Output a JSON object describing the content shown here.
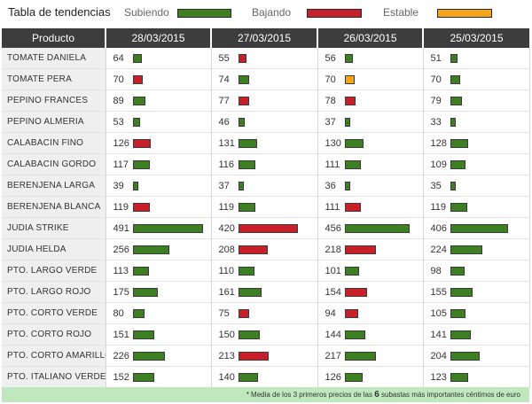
{
  "legend": {
    "title": "Tabla de tendencias",
    "up_label": "Subiendo",
    "down_label": "Bajando",
    "stable_label": "Estable"
  },
  "colors": {
    "up": "#3f7f24",
    "down": "#c8202a",
    "stable": "#f4a51a",
    "header_bg": "#3d3d3d",
    "footer_bg": "#bfe8bf"
  },
  "columns": [
    "Producto",
    "28/03/2015",
    "27/03/2015",
    "26/03/2015",
    "25/03/2015"
  ],
  "rows": [
    {
      "product": "TOMATE DANIELA",
      "cells": [
        {
          "value": 64,
          "trend": "up"
        },
        {
          "value": 55,
          "trend": "down"
        },
        {
          "value": 56,
          "trend": "up"
        },
        {
          "value": 51,
          "trend": "up"
        }
      ]
    },
    {
      "product": "TOMATE PERA",
      "cells": [
        {
          "value": 70,
          "trend": "down"
        },
        {
          "value": 74,
          "trend": "up"
        },
        {
          "value": 70,
          "trend": "stable"
        },
        {
          "value": 70,
          "trend": "up"
        }
      ]
    },
    {
      "product": "PEPINO FRANCES",
      "cells": [
        {
          "value": 89,
          "trend": "up"
        },
        {
          "value": 77,
          "trend": "down"
        },
        {
          "value": 78,
          "trend": "down"
        },
        {
          "value": 79,
          "trend": "up"
        }
      ]
    },
    {
      "product": "PEPINO ALMERIA",
      "cells": [
        {
          "value": 53,
          "trend": "up"
        },
        {
          "value": 46,
          "trend": "up"
        },
        {
          "value": 37,
          "trend": "up"
        },
        {
          "value": 33,
          "trend": "up"
        }
      ]
    },
    {
      "product": "CALABACIN FINO",
      "cells": [
        {
          "value": 126,
          "trend": "down"
        },
        {
          "value": 131,
          "trend": "up"
        },
        {
          "value": 130,
          "trend": "up"
        },
        {
          "value": 128,
          "trend": "up"
        }
      ]
    },
    {
      "product": "CALABACIN GORDO",
      "cells": [
        {
          "value": 117,
          "trend": "up"
        },
        {
          "value": 116,
          "trend": "up"
        },
        {
          "value": 111,
          "trend": "up"
        },
        {
          "value": 109,
          "trend": "up"
        }
      ]
    },
    {
      "product": "BERENJENA LARGA",
      "cells": [
        {
          "value": 39,
          "trend": "up"
        },
        {
          "value": 37,
          "trend": "up"
        },
        {
          "value": 36,
          "trend": "up"
        },
        {
          "value": 35,
          "trend": "up"
        }
      ]
    },
    {
      "product": "BERENJENA BLANCA",
      "cells": [
        {
          "value": 119,
          "trend": "down"
        },
        {
          "value": 119,
          "trend": "up"
        },
        {
          "value": 111,
          "trend": "down"
        },
        {
          "value": 119,
          "trend": "up"
        }
      ]
    },
    {
      "product": "JUDIA STRIKE",
      "cells": [
        {
          "value": 491,
          "trend": "up"
        },
        {
          "value": 420,
          "trend": "down"
        },
        {
          "value": 456,
          "trend": "up"
        },
        {
          "value": 406,
          "trend": "up"
        }
      ]
    },
    {
      "product": "JUDIA HELDA",
      "cells": [
        {
          "value": 256,
          "trend": "up"
        },
        {
          "value": 208,
          "trend": "down"
        },
        {
          "value": 218,
          "trend": "down"
        },
        {
          "value": 224,
          "trend": "up"
        }
      ]
    },
    {
      "product": "PTO. LARGO VERDE",
      "cells": [
        {
          "value": 113,
          "trend": "up"
        },
        {
          "value": 110,
          "trend": "up"
        },
        {
          "value": 101,
          "trend": "up"
        },
        {
          "value": 98,
          "trend": "up"
        }
      ]
    },
    {
      "product": "PTO. LARGO ROJO",
      "cells": [
        {
          "value": 175,
          "trend": "up"
        },
        {
          "value": 161,
          "trend": "up"
        },
        {
          "value": 154,
          "trend": "down"
        },
        {
          "value": 155,
          "trend": "up"
        }
      ]
    },
    {
      "product": "PTO. CORTO VERDE",
      "cells": [
        {
          "value": 80,
          "trend": "up"
        },
        {
          "value": 75,
          "trend": "down"
        },
        {
          "value": 94,
          "trend": "down"
        },
        {
          "value": 105,
          "trend": "up"
        }
      ]
    },
    {
      "product": "PTO. CORTO ROJO",
      "cells": [
        {
          "value": 151,
          "trend": "up"
        },
        {
          "value": 150,
          "trend": "up"
        },
        {
          "value": 144,
          "trend": "up"
        },
        {
          "value": 141,
          "trend": "up"
        }
      ]
    },
    {
      "product": "PTO. CORTO AMARILLO",
      "cells": [
        {
          "value": 226,
          "trend": "up"
        },
        {
          "value": 213,
          "trend": "down"
        },
        {
          "value": 217,
          "trend": "up"
        },
        {
          "value": 204,
          "trend": "up"
        }
      ]
    },
    {
      "product": "PTO. ITALIANO VERDE",
      "cells": [
        {
          "value": 152,
          "trend": "up"
        },
        {
          "value": 140,
          "trend": "up"
        },
        {
          "value": 126,
          "trend": "up"
        },
        {
          "value": 123,
          "trend": "up"
        }
      ]
    }
  ],
  "footer": {
    "prefix": "* Media de los 3 primeros precios de las",
    "count": "6",
    "suffix": "subastas más importantes céntimos de euro"
  }
}
